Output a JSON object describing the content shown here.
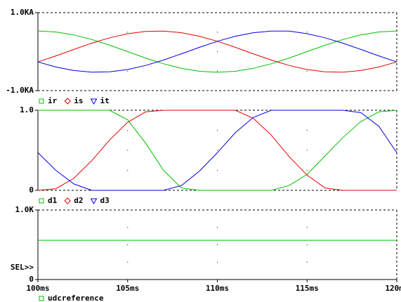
{
  "chart_data": [
    {
      "type": "line",
      "x": [
        100,
        101,
        102,
        103,
        104,
        105,
        106,
        107,
        108,
        109,
        110,
        111,
        112,
        113,
        114,
        115,
        116,
        117,
        118,
        119,
        120
      ],
      "xlim": [
        100,
        120
      ],
      "ylim": [
        -1000,
        1000
      ],
      "yticks": [
        {
          "value": 1000,
          "label": "1.0KA"
        },
        {
          "value": -1000,
          "label": "-1.0KA"
        }
      ],
      "series": [
        {
          "name": "ir",
          "color": "#00c000",
          "marker": "square",
          "values": [
            530,
            504,
            429,
            312,
            164,
            0,
            -164,
            -312,
            -429,
            -504,
            -530,
            -504,
            -429,
            -312,
            -164,
            0,
            164,
            312,
            429,
            504,
            530
          ]
        },
        {
          "name": "is",
          "color": "#e00000",
          "marker": "diamond",
          "values": [
            -265,
            -110,
            55,
            216,
            355,
            459,
            518,
            527,
            484,
            394,
            265,
            110,
            -55,
            -216,
            -355,
            -459,
            -518,
            -527,
            -484,
            -394,
            -265
          ]
        },
        {
          "name": "it",
          "color": "#0000e0",
          "marker": "triangle-down",
          "values": [
            -265,
            -394,
            -484,
            -527,
            -518,
            -459,
            -355,
            -216,
            -55,
            110,
            265,
            394,
            484,
            527,
            527,
            459,
            355,
            216,
            55,
            -110,
            -265
          ]
        }
      ]
    },
    {
      "type": "line",
      "x": [
        100,
        101,
        102,
        103,
        104,
        105,
        106,
        107,
        108,
        109,
        110,
        111,
        112,
        113,
        114,
        115,
        116,
        117,
        118,
        119,
        120
      ],
      "xlim": [
        100,
        120
      ],
      "ylim": [
        0,
        1
      ],
      "yticks": [
        {
          "value": 1,
          "label": "1.0"
        },
        0
      ],
      "series": [
        {
          "name": "d1",
          "color": "#00c000",
          "marker": "square",
          "values": [
            1,
            1,
            1,
            1,
            1,
            0.88,
            0.59,
            0.25,
            0.03,
            0,
            0,
            0,
            0,
            0,
            0.06,
            0.2,
            0.43,
            0.66,
            0.86,
            0.98,
            1
          ]
        },
        {
          "name": "d2",
          "color": "#e00000",
          "marker": "diamond",
          "values": [
            0,
            0.02,
            0.15,
            0.37,
            0.63,
            0.85,
            0.98,
            1,
            1,
            1,
            1,
            1,
            0.9,
            0.69,
            0.42,
            0.19,
            0.03,
            0,
            0,
            0,
            0
          ]
        },
        {
          "name": "d3",
          "color": "#0000e0",
          "marker": "triangle-down",
          "values": [
            0.47,
            0.25,
            0.08,
            0,
            0,
            0,
            0,
            0,
            0.06,
            0.24,
            0.47,
            0.72,
            0.91,
            1,
            1,
            1,
            1,
            1,
            0.97,
            0.8,
            0.47
          ]
        }
      ]
    },
    {
      "type": "line",
      "x": [
        100,
        120
      ],
      "xlim": [
        100,
        120
      ],
      "ylim": [
        0,
        1000
      ],
      "yticks": [
        {
          "value": 1000,
          "label": "1.0K"
        },
        0
      ],
      "xticks": [
        {
          "value": 100,
          "label": "100ms"
        },
        {
          "value": 105,
          "label": "105ms"
        },
        {
          "value": 110,
          "label": "110ms"
        },
        {
          "value": 115,
          "label": "115ms"
        },
        {
          "value": 120,
          "label": "120ms"
        }
      ],
      "annotation": "SEL>>",
      "series": [
        {
          "name": "udcreference",
          "color": "#00c000",
          "marker": "square",
          "values": [
            565,
            565
          ]
        }
      ]
    }
  ]
}
